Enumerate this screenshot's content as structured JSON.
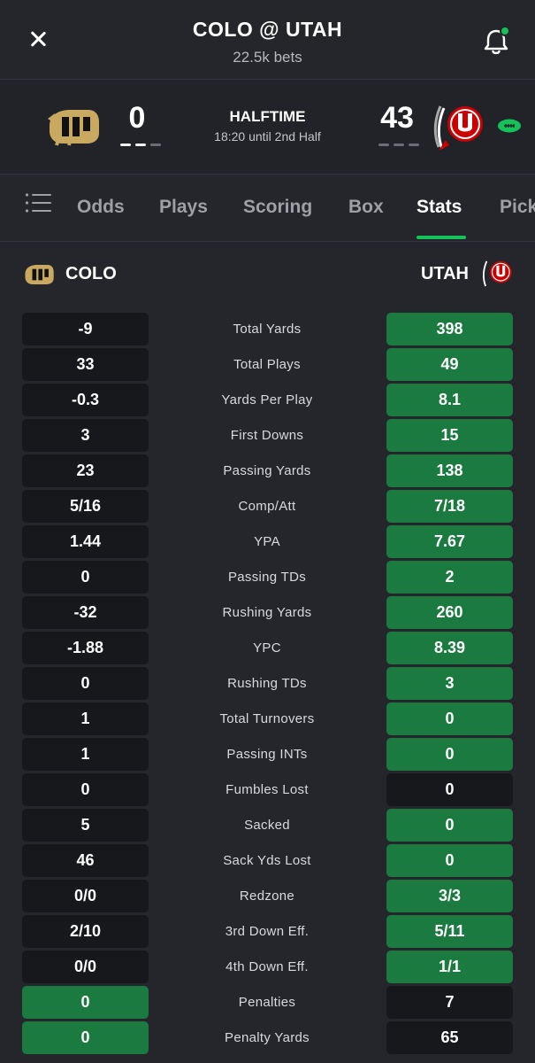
{
  "header": {
    "title": "COLO @ UTAH",
    "subtitle": "22.5k bets",
    "accent": "#16c15a"
  },
  "scoreboard": {
    "away_score": "0",
    "home_score": "43",
    "status": "HALFTIME",
    "status_detail": "18:20 until 2nd Half"
  },
  "tabs": [
    {
      "label": "Odds"
    },
    {
      "label": "Plays"
    },
    {
      "label": "Scoring"
    },
    {
      "label": "Box"
    },
    {
      "label": "Stats"
    },
    {
      "label": "Pick"
    }
  ],
  "active_tab": "Stats",
  "teams": {
    "away": "COLO",
    "home": "UTAH",
    "away_color": "#c8a95f",
    "home_color": "#cc0000"
  },
  "stats": [
    {
      "label": "Total Yards",
      "away": "-9",
      "home": "398",
      "leader": "home"
    },
    {
      "label": "Total Plays",
      "away": "33",
      "home": "49",
      "leader": "home"
    },
    {
      "label": "Yards Per Play",
      "away": "-0.3",
      "home": "8.1",
      "leader": "home"
    },
    {
      "label": "First Downs",
      "away": "3",
      "home": "15",
      "leader": "home"
    },
    {
      "label": "Passing Yards",
      "away": "23",
      "home": "138",
      "leader": "home"
    },
    {
      "label": "Comp/Att",
      "away": "5/16",
      "home": "7/18",
      "leader": "home"
    },
    {
      "label": "YPA",
      "away": "1.44",
      "home": "7.67",
      "leader": "home"
    },
    {
      "label": "Passing TDs",
      "away": "0",
      "home": "2",
      "leader": "home"
    },
    {
      "label": "Rushing Yards",
      "away": "-32",
      "home": "260",
      "leader": "home"
    },
    {
      "label": "YPC",
      "away": "-1.88",
      "home": "8.39",
      "leader": "home"
    },
    {
      "label": "Rushing TDs",
      "away": "0",
      "home": "3",
      "leader": "home"
    },
    {
      "label": "Total Turnovers",
      "away": "1",
      "home": "0",
      "leader": "home"
    },
    {
      "label": "Passing INTs",
      "away": "1",
      "home": "0",
      "leader": "home"
    },
    {
      "label": "Fumbles Lost",
      "away": "0",
      "home": "0",
      "leader": "none"
    },
    {
      "label": "Sacked",
      "away": "5",
      "home": "0",
      "leader": "home"
    },
    {
      "label": "Sack Yds Lost",
      "away": "46",
      "home": "0",
      "leader": "home"
    },
    {
      "label": "Redzone",
      "away": "0/0",
      "home": "3/3",
      "leader": "home"
    },
    {
      "label": "3rd Down Eff.",
      "away": "2/10",
      "home": "5/11",
      "leader": "home"
    },
    {
      "label": "4th Down Eff.",
      "away": "0/0",
      "home": "1/1",
      "leader": "home"
    },
    {
      "label": "Penalties",
      "away": "0",
      "home": "7",
      "leader": "away"
    },
    {
      "label": "Penalty Yards",
      "away": "0",
      "home": "65",
      "leader": "away"
    }
  ]
}
